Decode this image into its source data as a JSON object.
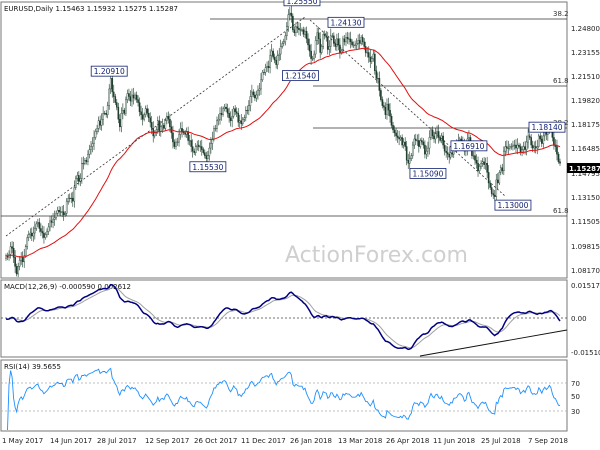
{
  "chart_data": [
    {
      "type": "candlestick",
      "panel": "price",
      "header": "EURUSD,Daily  1.15463 1.15932 1.15275 1.15287",
      "watermark": "ActionForex.com",
      "y_ticks": [
        "1.24800",
        "1.23155",
        "1.21510",
        "1.19820",
        "1.18175",
        "1.16485",
        "1.14795",
        "1.13150",
        "1.11505",
        "1.09815",
        "1.08170"
      ],
      "ylim": [
        1.078,
        1.258
      ],
      "current_price": {
        "label": "1.15287",
        "value": 1.15287
      },
      "x_ticks": [
        "1 May 2017",
        "14 Jun 2017",
        "28 Jul 2017",
        "12 Sep 2017",
        "26 Oct 2017",
        "11 Dec 2017",
        "26 Jan 2018",
        "13 Mar 2018",
        "26 Apr 2018",
        "11 Jun 2018",
        "25 Jul 2018",
        "7 Sep 2018"
      ],
      "pivots": [
        {
          "label": "1.25550",
          "value": 1.2555,
          "bar": 195
        },
        {
          "label": "1.24130",
          "value": 1.2413,
          "bar": 224
        },
        {
          "label": "1.21540",
          "value": 1.2154,
          "bar": 194
        },
        {
          "label": "1.20910",
          "value": 1.2091,
          "bar": 68
        },
        {
          "label": "1.15530",
          "value": 1.1553,
          "bar": 133
        },
        {
          "label": "1.15090",
          "value": 1.1509,
          "bar": 278
        },
        {
          "label": "1.16910",
          "value": 1.1691,
          "bar": 305
        },
        {
          "label": "1.18140",
          "value": 1.1814,
          "bar": 368
        },
        {
          "label": "1.13000",
          "value": 1.13,
          "bar": 334
        }
      ],
      "fib_levels": [
        {
          "label": "38.2",
          "value": 1.2555
        },
        {
          "label": "61.8",
          "value": 1.2055
        },
        {
          "label": "38.2",
          "value": 1.1775
        },
        {
          "label": "61.8",
          "value": 1.1195
        }
      ],
      "series": [
        {
          "name": "EMA",
          "color": "#e01010"
        }
      ],
      "closes": [
        1.092,
        1.091,
        1.093,
        1.098,
        1.097,
        1.091,
        1.085,
        1.08,
        1.085,
        1.089,
        1.091,
        1.088,
        1.092,
        1.098,
        1.104,
        1.106,
        1.107,
        1.105,
        1.107,
        1.11,
        1.113,
        1.114,
        1.11,
        1.108,
        1.107,
        1.104,
        1.106,
        1.108,
        1.111,
        1.115,
        1.114,
        1.116,
        1.117,
        1.12,
        1.122,
        1.121,
        1.121,
        1.121,
        1.119,
        1.12,
        1.128,
        1.13,
        1.13,
        1.13,
        1.128,
        1.137,
        1.143,
        1.145,
        1.141,
        1.143,
        1.153,
        1.153,
        1.155,
        1.154,
        1.159,
        1.162,
        1.164,
        1.166,
        1.17,
        1.174,
        1.176,
        1.181,
        1.178,
        1.182,
        1.186,
        1.186,
        1.185,
        1.191,
        1.202,
        1.209,
        1.2,
        1.197,
        1.193,
        1.19,
        1.182,
        1.177,
        1.186,
        1.188,
        1.186,
        1.195,
        1.199,
        1.197,
        1.194,
        1.198,
        1.196,
        1.198,
        1.195,
        1.193,
        1.187,
        1.185,
        1.182,
        1.185,
        1.189,
        1.186,
        1.183,
        1.18,
        1.176,
        1.171,
        1.173,
        1.175,
        1.181,
        1.174,
        1.177,
        1.178,
        1.176,
        1.181,
        1.184,
        1.182,
        1.177,
        1.173,
        1.167,
        1.164,
        1.167,
        1.167,
        1.172,
        1.176,
        1.174,
        1.173,
        1.172,
        1.174,
        1.168,
        1.168,
        1.164,
        1.161,
        1.16,
        1.164,
        1.165,
        1.164,
        1.164,
        1.162,
        1.16,
        1.158,
        1.156,
        1.158,
        1.163,
        1.166,
        1.169,
        1.176,
        1.176,
        1.181,
        1.182,
        1.186,
        1.185,
        1.189,
        1.19,
        1.189,
        1.186,
        1.183,
        1.181,
        1.184,
        1.189,
        1.187,
        1.186,
        1.18,
        1.181,
        1.179,
        1.182,
        1.183,
        1.188,
        1.188,
        1.191,
        1.197,
        1.2,
        1.198,
        1.196,
        1.198,
        1.201,
        1.202,
        1.208,
        1.213,
        1.213,
        1.216,
        1.217,
        1.216,
        1.224,
        1.227,
        1.223,
        1.221,
        1.218,
        1.224,
        1.225,
        1.23,
        1.232,
        1.233,
        1.237,
        1.243,
        1.251,
        1.252,
        1.25,
        1.241,
        1.239,
        1.243,
        1.242,
        1.241,
        1.241,
        1.241,
        1.238,
        1.24,
        1.235,
        1.231,
        1.227,
        1.222,
        1.222,
        1.225,
        1.234,
        1.239,
        1.235,
        1.226,
        1.23,
        1.238,
        1.237,
        1.236,
        1.228,
        1.23,
        1.237,
        1.237,
        1.232,
        1.23,
        1.235,
        1.231,
        1.226,
        1.227,
        1.235,
        1.233,
        1.236,
        1.235,
        1.235,
        1.233,
        1.231,
        1.231,
        1.231,
        1.232,
        1.234,
        1.232,
        1.236,
        1.233,
        1.23,
        1.226,
        1.226,
        1.223,
        1.22,
        1.222,
        1.225,
        1.214,
        1.209,
        1.209,
        1.201,
        1.195,
        1.191,
        1.19,
        1.185,
        1.192,
        1.188,
        1.184,
        1.178,
        1.175,
        1.173,
        1.171,
        1.17,
        1.169,
        1.17,
        1.165,
        1.167,
        1.164,
        1.155,
        1.153,
        1.156,
        1.158,
        1.165,
        1.169,
        1.168,
        1.168,
        1.164,
        1.168,
        1.167,
        1.165,
        1.159,
        1.161,
        1.163,
        1.17,
        1.175,
        1.171,
        1.169,
        1.173,
        1.174,
        1.17,
        1.168,
        1.171,
        1.165,
        1.161,
        1.16,
        1.159,
        1.157,
        1.16,
        1.159,
        1.164,
        1.164,
        1.165,
        1.168,
        1.169,
        1.168,
        1.166,
        1.161,
        1.162,
        1.169,
        1.17,
        1.165,
        1.158,
        1.158,
        1.155,
        1.153,
        1.148,
        1.151,
        1.153,
        1.154,
        1.152,
        1.153,
        1.147,
        1.14,
        1.137,
        1.133,
        1.132,
        1.131,
        1.142,
        1.14,
        1.147,
        1.15,
        1.148,
        1.161,
        1.164,
        1.163,
        1.163,
        1.164,
        1.164,
        1.165,
        1.165,
        1.163,
        1.165,
        1.164,
        1.16,
        1.162,
        1.164,
        1.162,
        1.167,
        1.171,
        1.17,
        1.165,
        1.163,
        1.164,
        1.163,
        1.164,
        1.171,
        1.169,
        1.166,
        1.171,
        1.174,
        1.172,
        1.174,
        1.178,
        1.176,
        1.17,
        1.165,
        1.164,
        1.159,
        1.154,
        1.153
      ]
    },
    {
      "type": "line",
      "panel": "macd",
      "header": "MACD(12,26,9) -0.000590 0.002612",
      "y_ticks": [
        "0.015176",
        "0.00",
        "-0.015109"
      ],
      "ylim": [
        -0.0175,
        0.0175
      ],
      "series": [
        {
          "name": "MACD",
          "color": "#000080"
        },
        {
          "name": "Signal",
          "color": "#a0a0a0"
        }
      ]
    },
    {
      "type": "line",
      "panel": "rsi",
      "header": "RSI(14) 39.5655",
      "y_ticks": [
        "70",
        "50",
        "30"
      ],
      "levels": [
        70,
        30
      ],
      "ylim": [
        0,
        100
      ],
      "series": [
        {
          "name": "RSI",
          "color": "#1e90ff"
        }
      ]
    }
  ]
}
